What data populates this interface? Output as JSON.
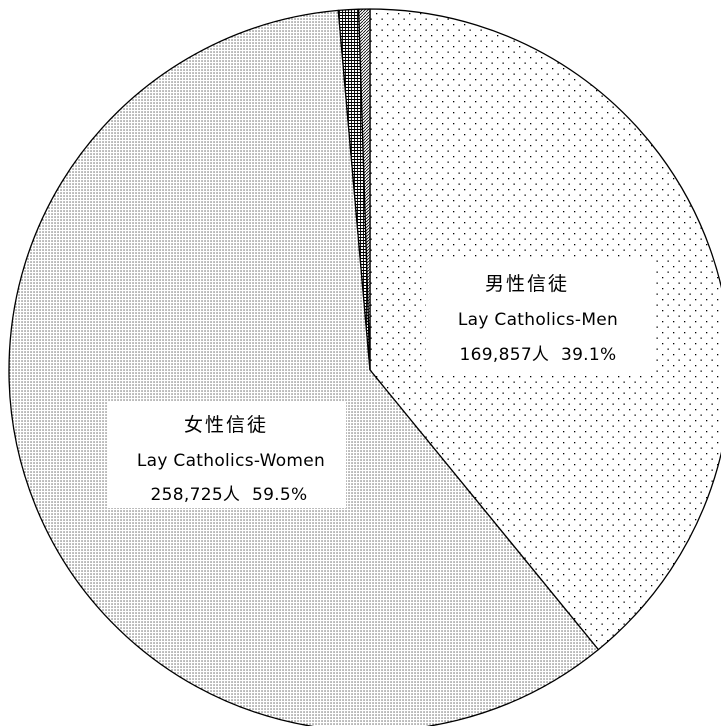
{
  "chart_data": {
    "type": "pie",
    "start_angle_deg": 0,
    "direction": "clockwise",
    "slices": [
      {
        "key": "men",
        "label_ja": "男性信徒",
        "label_en": "Lay Catholics-Men",
        "count_text": "169,857人",
        "percent_text": "39.1%",
        "value": 169857,
        "percent": 39.1,
        "pattern": "sparse-dots"
      },
      {
        "key": "women",
        "label_ja": "女性信徒",
        "label_en": "Lay Catholics-Women",
        "count_text": "258,725人",
        "percent_text": "59.5%",
        "value": 258725,
        "percent": 59.5,
        "pattern": "dense-dots"
      },
      {
        "key": "other-a",
        "percent": 0.9,
        "pattern": "grid"
      },
      {
        "key": "other-b",
        "percent": 0.5,
        "pattern": "diagonal"
      }
    ]
  }
}
